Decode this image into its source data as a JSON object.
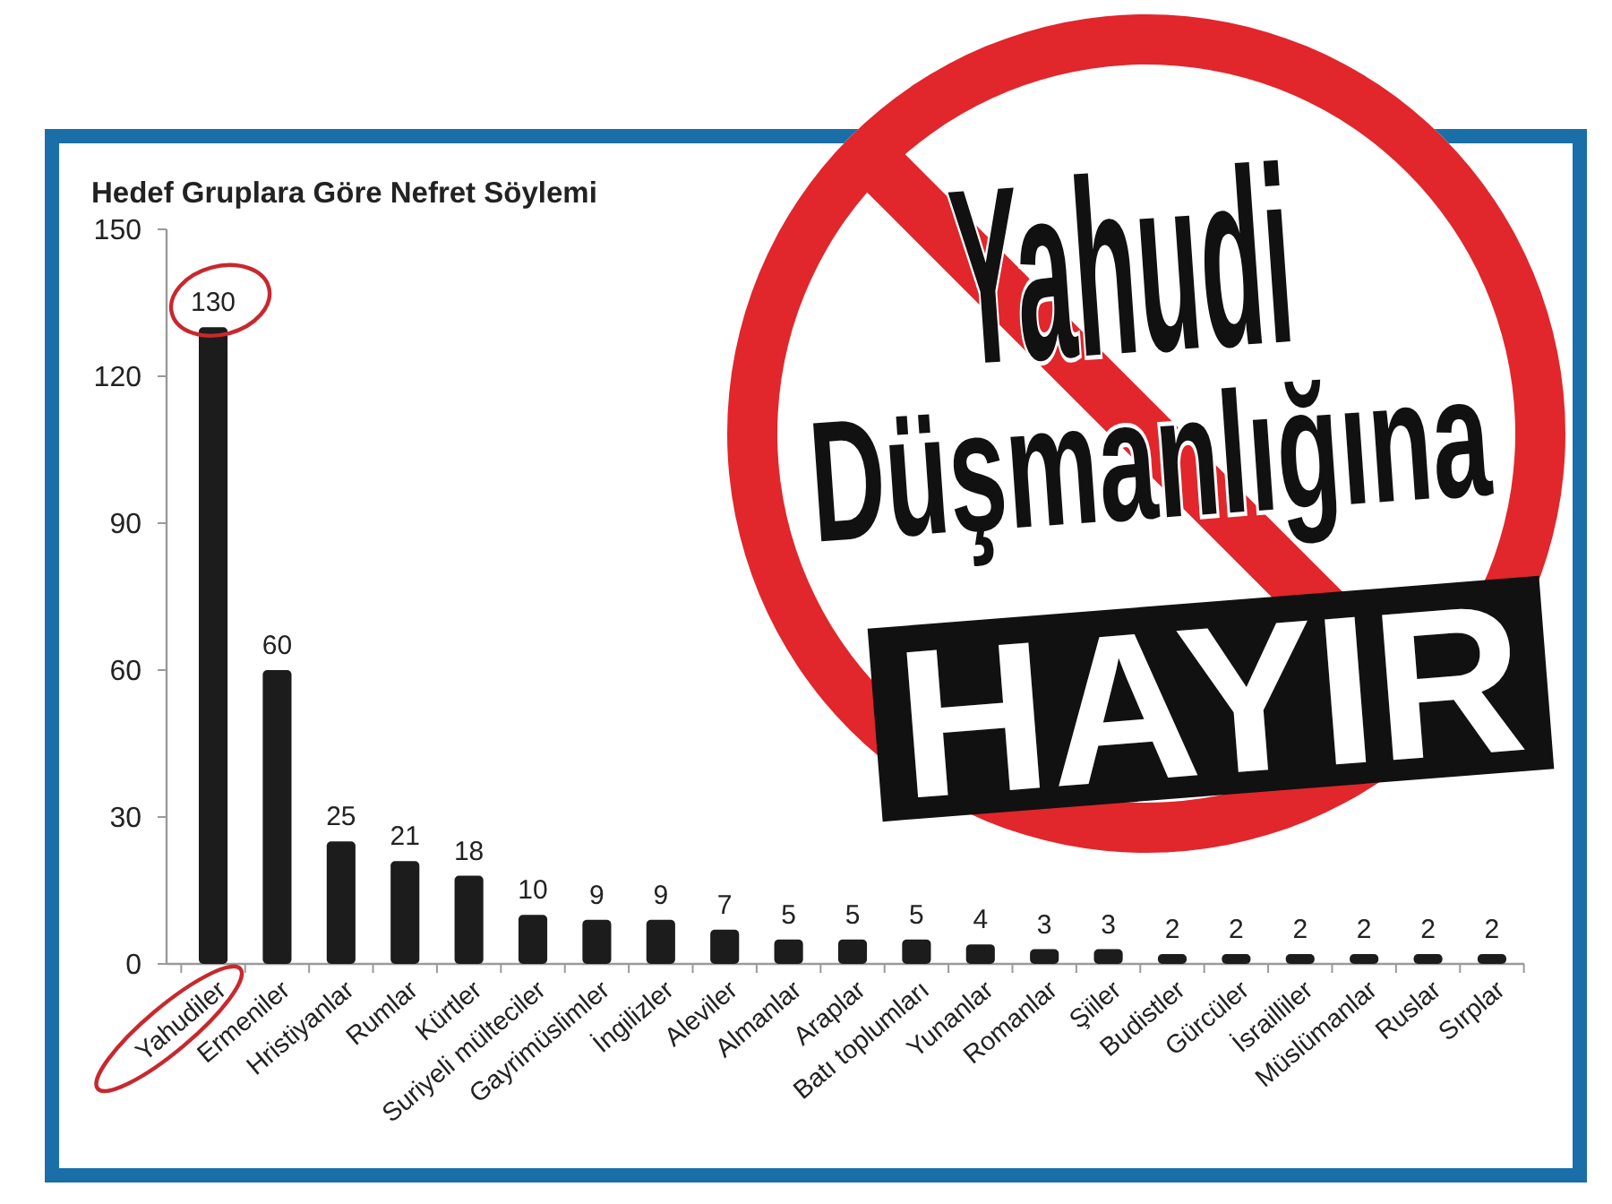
{
  "chart_data": {
    "type": "bar",
    "title": "Hedef Gruplara Göre Nefret Söylemi",
    "categories": [
      "Yahudiler",
      "Ermeniler",
      "Hristiyanlar",
      "Rumlar",
      "Kürtler",
      "Suriyeli mülteciler",
      "Gayrimüslimler",
      "İngilizler",
      "Aleviler",
      "Almanlar",
      "Araplar",
      "Batı toplumları",
      "Yunanlar",
      "Romanlar",
      "Şiiler",
      "Budistler",
      "Gürcüler",
      "İsrailliler",
      "Müslümanlar",
      "Ruslar",
      "Sırplar"
    ],
    "values": [
      130,
      60,
      25,
      21,
      18,
      10,
      9,
      9,
      7,
      5,
      5,
      5,
      4,
      3,
      3,
      2,
      2,
      2,
      2,
      2,
      2
    ],
    "color": "#1c1c1c",
    "ylim": [
      0,
      150
    ],
    "yticks": [
      0,
      30,
      60,
      90,
      120,
      150
    ],
    "data_labels": true,
    "annotations": [
      "Yahudi Düşmanlığına",
      "HAYIR"
    ]
  }
}
